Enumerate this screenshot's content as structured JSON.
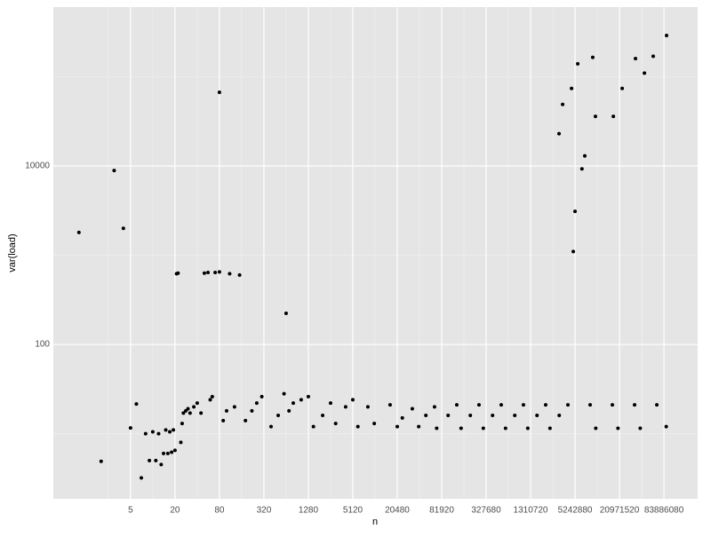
{
  "chart_data": {
    "type": "scatter",
    "x_label": "n",
    "y_label": "var(load)",
    "xlog": true,
    "ylog": true,
    "grid": true,
    "minor_grid": true,
    "color": "#000000",
    "xlim": [
      0.45,
      240000000
    ],
    "ylim": [
      1.86,
      604000
    ],
    "xticks": [
      5,
      20,
      80,
      320,
      1280,
      5120,
      20480,
      81920,
      327680,
      1310720,
      5242880,
      20971520,
      83886080
    ],
    "yticks": [
      100,
      10000
    ],
    "x": [
      1,
      2,
      3,
      4,
      5,
      6,
      7,
      8,
      9,
      10,
      11,
      12,
      13,
      14,
      15,
      16,
      17,
      18,
      19,
      20,
      21,
      22,
      24,
      25,
      26,
      28,
      30,
      32,
      36,
      40,
      45,
      50,
      56,
      60,
      64,
      70,
      80,
      80,
      90,
      100,
      110,
      128,
      150,
      180,
      220,
      256,
      300,
      400,
      500,
      600,
      640,
      700,
      800,
      1024,
      1280,
      1500,
      2000,
      2560,
      3000,
      4096,
      5120,
      6000,
      8192,
      10000,
      16384,
      20480,
      24000,
      32768,
      40000,
      50000,
      65536,
      70000,
      100000,
      131072,
      150000,
      200000,
      262144,
      300000,
      400000,
      524288,
      600000,
      800000,
      1048576,
      1200000,
      1600000,
      2097152,
      2400000,
      3200000,
      4194304,
      8388608,
      10000000,
      16777216,
      20000000,
      33554432,
      40000000,
      67108864,
      90000000,
      3180000,
      3560000,
      4700000,
      4960000,
      5240000,
      5700000,
      6500000,
      7100000,
      9100000,
      9900000,
      17300000,
      22800000,
      34500000,
      45600000,
      60000000,
      91000000
    ],
    "y": [
      1800,
      4.9,
      8900,
      2000,
      11.6,
      21.5,
      3.2,
      10,
      5,
      10.5,
      5,
      10,
      4.5,
      6,
      11,
      6,
      10.5,
      6.2,
      11,
      6.5,
      620,
      630,
      8,
      13,
      17,
      18,
      19,
      17,
      20,
      22,
      17,
      630,
      640,
      24,
      26,
      640,
      650,
      67000,
      14,
      18,
      620,
      20,
      600,
      14,
      18,
      22,
      26,
      12,
      16,
      28,
      223,
      18,
      22,
      24,
      26,
      12,
      16,
      22,
      13,
      20,
      24,
      12,
      20,
      13,
      21,
      12,
      15,
      19,
      12,
      16,
      20,
      11.5,
      16,
      21,
      11.5,
      16,
      21,
      11.5,
      16,
      21,
      11.5,
      16,
      21,
      11.5,
      16,
      21,
      11.5,
      16,
      21,
      21,
      11.5,
      21,
      11.5,
      21,
      11.5,
      21,
      12,
      23000,
      49000,
      74000,
      1100,
      3100,
      140000,
      9300,
      13000,
      165000,
      36000,
      36000,
      74000,
      160000,
      110000,
      170000,
      290000
    ]
  }
}
